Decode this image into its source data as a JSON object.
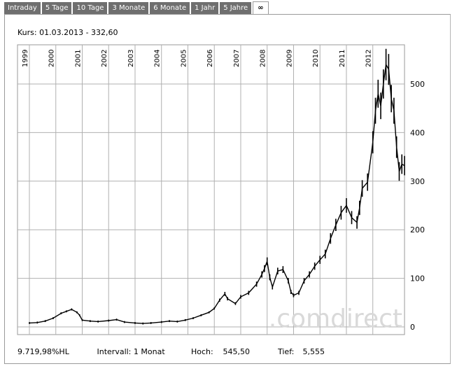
{
  "tabs": [
    {
      "label": "Intraday",
      "active": false
    },
    {
      "label": "5 Tage",
      "active": false
    },
    {
      "label": "10 Tage",
      "active": false
    },
    {
      "label": "3 Monate",
      "active": false
    },
    {
      "label": "6 Monate",
      "active": false
    },
    {
      "label": "1 Jahr",
      "active": false
    },
    {
      "label": "5 Jahre",
      "active": false
    },
    {
      "label": "∞",
      "active": true
    }
  ],
  "quote": "Kurs: 01.03.2013 - 332,60",
  "watermark": ".comdirect",
  "footer": {
    "change": "9.719,98%HL",
    "interval": "Intervall: 1 Monat",
    "high_label": "Hoch:",
    "high_value": "545,50",
    "low_label": "Tief:",
    "low_value": "5,555"
  },
  "colors": {
    "grid": "#b0b0b0",
    "line": "#000000",
    "tab_bg": "#6f6f6f",
    "watermark": "#d9d9d9"
  },
  "chart_data": {
    "type": "line",
    "xlabel": "",
    "ylabel": "",
    "ylim": [
      0,
      560
    ],
    "y_ticks": [
      0,
      100,
      200,
      300,
      400,
      500
    ],
    "year_labels": [
      "1999",
      "2000",
      "2001",
      "2002",
      "2003",
      "2004",
      "2005",
      "2006",
      "2007",
      "2008",
      "2009",
      "2010",
      "2011",
      "2012"
    ],
    "x_range": [
      1999.0,
      2013.2
    ],
    "grid": true,
    "series": [
      {
        "x": [
          1999.0,
          1999.3,
          1999.6,
          1999.9,
          2000.2,
          2000.4,
          2000.6,
          2000.8,
          2000.9,
          2001.0,
          2001.3,
          2001.6,
          2002.0,
          2002.3,
          2002.6,
          2003.0,
          2003.3,
          2003.6,
          2004.0,
          2004.3,
          2004.6,
          2004.9,
          2005.2,
          2005.5,
          2005.8,
          2006.0,
          2006.2,
          2006.4,
          2006.5,
          2006.8,
          2007.0,
          2007.3,
          2007.6,
          2007.8,
          2007.9,
          2008.0,
          2008.1,
          2008.2,
          2008.4,
          2008.6,
          2008.8,
          2008.9,
          2009.0,
          2009.2,
          2009.4,
          2009.6,
          2009.8,
          2010.0,
          2010.2,
          2010.4,
          2010.6,
          2010.8,
          2011.0,
          2011.2,
          2011.4,
          2011.5,
          2011.6,
          2011.8,
          2012.0,
          2012.1,
          2012.2,
          2012.3,
          2012.4,
          2012.5,
          2012.6,
          2012.7,
          2012.8,
          2012.9,
          2013.0,
          2013.1,
          2013.2
        ],
        "y": [
          8,
          9,
          12,
          18,
          28,
          32,
          36,
          30,
          24,
          14,
          12,
          11,
          13,
          15,
          10,
          8,
          7,
          8,
          10,
          12,
          11,
          14,
          18,
          24,
          30,
          38,
          55,
          68,
          58,
          48,
          62,
          70,
          88,
          108,
          120,
          135,
          102,
          82,
          115,
          118,
          95,
          72,
          65,
          70,
          95,
          108,
          125,
          138,
          150,
          182,
          210,
          235,
          250,
          225,
          215,
          245,
          285,
          298,
          380,
          445,
          480,
          455,
          500,
          540,
          530,
          470,
          445,
          370,
          320,
          335,
          332
        ]
      }
    ]
  }
}
